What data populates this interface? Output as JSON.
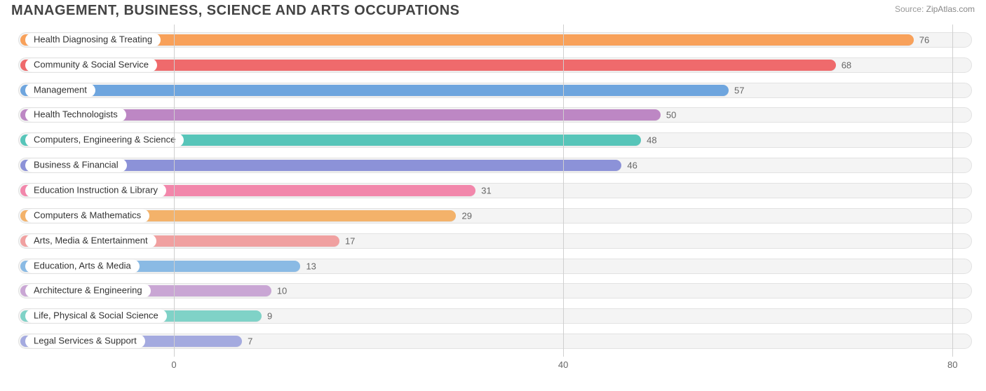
{
  "header": {
    "title": "MANAGEMENT, BUSINESS, SCIENCE AND ARTS OCCUPATIONS",
    "source_label": "Source:",
    "source_site": "ZipAtlas.com"
  },
  "chart": {
    "type": "bar-horizontal",
    "background_color": "#ffffff",
    "track_bg": "#f4f4f4",
    "track_border": "#e2e2e2",
    "grid_color": "#cfcfcf",
    "axis_label_color": "#666666",
    "pill_bg": "#ffffff",
    "pill_text_color": "#333333",
    "value_text_color": "#666666",
    "label_fontsize": 13,
    "title_fontsize": 20,
    "x_origin_value": -16,
    "xlim": [
      -16,
      82
    ],
    "xticks": [
      0,
      40,
      80
    ],
    "bars": [
      {
        "label": "Health Diagnosing & Treating",
        "value": 76,
        "color": "#f8a15a"
      },
      {
        "label": "Community & Social Service",
        "value": 68,
        "color": "#ef6a6c"
      },
      {
        "label": "Management",
        "value": 57,
        "color": "#6ea5de"
      },
      {
        "label": "Health Technologists",
        "value": 50,
        "color": "#bd87c4"
      },
      {
        "label": "Computers, Engineering & Science",
        "value": 48,
        "color": "#57c5b9"
      },
      {
        "label": "Business & Financial",
        "value": 46,
        "color": "#8c92d8"
      },
      {
        "label": "Education Instruction & Library",
        "value": 31,
        "color": "#f287ab"
      },
      {
        "label": "Computers & Mathematics",
        "value": 29,
        "color": "#f3b26a"
      },
      {
        "label": "Arts, Media & Entertainment",
        "value": 17,
        "color": "#f0a0a0"
      },
      {
        "label": "Education, Arts & Media",
        "value": 13,
        "color": "#8abae4"
      },
      {
        "label": "Architecture & Engineering",
        "value": 10,
        "color": "#c9a6d4"
      },
      {
        "label": "Life, Physical & Social Science",
        "value": 9,
        "color": "#7fd2c7"
      },
      {
        "label": "Legal Services & Support",
        "value": 7,
        "color": "#a4aadf"
      }
    ]
  }
}
